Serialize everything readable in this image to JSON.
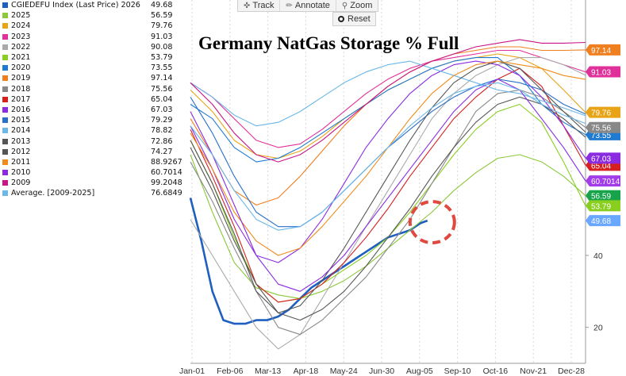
{
  "toolbar": {
    "track_label": "Track",
    "annotate_label": "Annotate",
    "zoom_label": "Zoom",
    "reset_label": "Reset"
  },
  "chart_data": {
    "type": "line",
    "title": "Germany NatGas Storage % Full",
    "x_ticks": [
      "Jan-01",
      "Feb-06",
      "Mar-13",
      "Apr-18",
      "May-24",
      "Jun-30",
      "Aug-05",
      "Sep-10",
      "Oct-16",
      "Nov-21",
      "Dec-28"
    ],
    "y_ticks": [
      20,
      40
    ],
    "ylim": [
      10,
      111
    ],
    "grid": "vertical-dashed",
    "legend_position": "top-left",
    "annotation": "red dashed circle around latest 2026 value",
    "series": [
      {
        "name": "CGIEDEFU Index (Last Price) 2026",
        "color": "#1f5fbf",
        "last": "49.68",
        "tag": "49.68",
        "tag_color": "#6aa8ff",
        "x": [
          0,
          10,
          20,
          30,
          40,
          50,
          60,
          70,
          80,
          90,
          100,
          110,
          120,
          130,
          140,
          150,
          160,
          170,
          180,
          190,
          200,
          210,
          216
        ],
        "y": [
          56,
          44,
          30,
          22,
          21,
          21,
          22,
          22,
          23,
          25,
          28,
          31,
          33,
          35,
          37,
          39,
          41,
          43,
          45,
          46,
          47,
          49,
          49.68
        ]
      },
      {
        "name": "2025",
        "color": "#8bc93a",
        "last": "56.59",
        "tag": "56.59",
        "tag_color": "#16a34a",
        "x": [
          0,
          20,
          40,
          60,
          80,
          100,
          120,
          140,
          160,
          180,
          200,
          220,
          240,
          260,
          280,
          300,
          320,
          340,
          360
        ],
        "y": [
          68,
          52,
          38,
          31,
          29,
          28,
          30,
          33,
          37,
          42,
          47,
          52,
          58,
          63,
          67,
          68,
          66,
          62,
          56.59
        ]
      },
      {
        "name": "2024",
        "color": "#e8a317",
        "last": "79.76",
        "tag": "79.76",
        "tag_color": "#e8a317",
        "x": [
          0,
          20,
          40,
          60,
          80,
          100,
          120,
          140,
          160,
          180,
          200,
          220,
          240,
          260,
          280,
          300,
          320,
          340,
          360
        ],
        "y": [
          86,
          80,
          72,
          68,
          67,
          69,
          73,
          78,
          82,
          86,
          89,
          92,
          94,
          95,
          96,
          95,
          92,
          86,
          79.76
        ]
      },
      {
        "name": "2023",
        "color": "#e0309a",
        "last": "91.03",
        "tag": "91.03",
        "tag_color": "#e0309a",
        "x": [
          0,
          20,
          40,
          60,
          80,
          100,
          120,
          140,
          160,
          180,
          200,
          220,
          240,
          260,
          280,
          300,
          320,
          340,
          360
        ],
        "y": [
          88,
          84,
          78,
          72,
          70,
          71,
          75,
          80,
          85,
          89,
          92,
          94,
          95,
          96,
          97,
          97,
          95,
          93,
          91.03
        ]
      },
      {
        "name": "2022",
        "color": "#aaaaaa",
        "last": "90.08",
        "tag": "",
        "tag_color": "#aaaaaa",
        "x": [
          0,
          20,
          40,
          60,
          80,
          100,
          120,
          140,
          160,
          180,
          200,
          220,
          240,
          260,
          280,
          300,
          320,
          340,
          360
        ],
        "y": [
          50,
          40,
          30,
          20,
          14,
          18,
          28,
          38,
          48,
          58,
          68,
          78,
          85,
          90,
          93,
          95,
          95,
          93,
          90.08
        ]
      },
      {
        "name": "2021",
        "color": "#8acf20",
        "last": "53.79",
        "tag": "53.79",
        "tag_color": "#8acf20",
        "x": [
          0,
          20,
          40,
          60,
          80,
          100,
          120,
          140,
          160,
          180,
          200,
          220,
          240,
          260,
          280,
          300,
          320,
          340,
          360
        ],
        "y": [
          72,
          60,
          45,
          32,
          27,
          28,
          32,
          36,
          40,
          45,
          52,
          60,
          68,
          75,
          80,
          82,
          77,
          66,
          53.79
        ]
      },
      {
        "name": "2020",
        "color": "#1f7ad0",
        "last": "73.55",
        "tag": "73.55",
        "tag_color": "#1f7ad0",
        "x": [
          0,
          20,
          40,
          60,
          80,
          100,
          120,
          140,
          160,
          180,
          200,
          220,
          240,
          260,
          280,
          300,
          320,
          340,
          360
        ],
        "y": [
          82,
          78,
          70,
          66,
          67,
          70,
          74,
          78,
          82,
          86,
          89,
          92,
          94,
          95,
          95,
          90,
          82,
          77,
          73.55
        ]
      },
      {
        "name": "2019",
        "color": "#f07f20",
        "last": "97.14",
        "tag": "97.14",
        "tag_color": "#f07f20",
        "x": [
          0,
          20,
          40,
          60,
          80,
          100,
          120,
          140,
          160,
          180,
          200,
          220,
          240,
          260,
          280,
          300,
          320,
          340,
          360
        ],
        "y": [
          78,
          68,
          58,
          54,
          56,
          62,
          69,
          76,
          82,
          87,
          91,
          94,
          96,
          97,
          98,
          98,
          97,
          97,
          97.14
        ]
      },
      {
        "name": "2018",
        "color": "#888888",
        "last": "75.56",
        "tag": "75.56",
        "tag_color": "#888888",
        "x": [
          0,
          20,
          40,
          60,
          80,
          100,
          120,
          140,
          160,
          180,
          200,
          220,
          240,
          260,
          280,
          300,
          320,
          340,
          360
        ],
        "y": [
          66,
          55,
          42,
          30,
          20,
          18,
          22,
          28,
          34,
          42,
          50,
          60,
          70,
          80,
          85,
          86,
          84,
          80,
          75.56
        ]
      },
      {
        "name": "2017",
        "color": "#d62020",
        "last": "65.04",
        "tag": "65.04",
        "tag_color": "#d62020",
        "x": [
          0,
          20,
          40,
          60,
          80,
          100,
          120,
          140,
          160,
          180,
          200,
          220,
          240,
          260,
          280,
          300,
          320,
          340,
          360
        ],
        "y": [
          75,
          62,
          48,
          32,
          27,
          28,
          32,
          38,
          45,
          53,
          62,
          70,
          78,
          84,
          89,
          92,
          87,
          76,
          65.04
        ]
      },
      {
        "name": "2016",
        "color": "#8a2be2",
        "last": "67.03",
        "tag": "67.03",
        "tag_color": "#8a2be2",
        "x": [
          0,
          20,
          40,
          60,
          80,
          100,
          120,
          140,
          160,
          180,
          200,
          220,
          240,
          260,
          280,
          300,
          320,
          340,
          360
        ],
        "y": [
          76,
          64,
          50,
          40,
          38,
          42,
          50,
          60,
          70,
          78,
          85,
          90,
          93,
          94,
          93,
          90,
          84,
          76,
          67.03
        ]
      },
      {
        "name": "2015",
        "color": "#2a6fc9",
        "last": "79.29",
        "tag": "",
        "tag_color": "#2a6fc9",
        "x": [
          0,
          20,
          40,
          60,
          80,
          100,
          120,
          140,
          160,
          180,
          200,
          220,
          240,
          260,
          280,
          300,
          320,
          340,
          360
        ],
        "y": [
          84,
          74,
          62,
          52,
          48,
          48,
          52,
          58,
          64,
          70,
          75,
          80,
          84,
          87,
          89,
          88,
          86,
          82,
          79.29
        ]
      },
      {
        "name": "2014",
        "color": "#6ab7e8",
        "last": "78.82",
        "tag": "",
        "tag_color": "#6ab7e8",
        "x": [
          0,
          20,
          40,
          60,
          80,
          100,
          120,
          140,
          160,
          180,
          200,
          220,
          240,
          260,
          280,
          300,
          320,
          340,
          360
        ],
        "y": [
          88,
          84,
          79,
          76,
          77,
          80,
          84,
          88,
          91,
          93,
          94,
          92,
          90,
          88,
          86,
          85,
          83,
          81,
          78.82
        ]
      },
      {
        "name": "2013",
        "color": "#555555",
        "last": "72.86",
        "tag": "",
        "tag_color": "#555555",
        "x": [
          0,
          20,
          40,
          60,
          80,
          100,
          120,
          140,
          160,
          180,
          200,
          220,
          240,
          260,
          280,
          300,
          320,
          340,
          360
        ],
        "y": [
          70,
          58,
          44,
          32,
          24,
          22,
          25,
          30,
          37,
          45,
          53,
          62,
          70,
          77,
          82,
          84,
          82,
          78,
          72.86
        ]
      },
      {
        "name": "2012",
        "color": "#555555",
        "last": "74.27",
        "tag": "",
        "tag_color": "#555555",
        "x": [
          0,
          20,
          40,
          60,
          80,
          100,
          120,
          140,
          160,
          180,
          200,
          220,
          240,
          260,
          280,
          300,
          320,
          340,
          360
        ],
        "y": [
          72,
          60,
          46,
          30,
          24,
          26,
          33,
          42,
          52,
          62,
          72,
          81,
          88,
          92,
          94,
          92,
          86,
          80,
          74.27
        ]
      },
      {
        "name": "2011",
        "color": "#f08c1a",
        "last": "88.9267",
        "tag": "",
        "tag_color": "#f08c1a",
        "x": [
          0,
          20,
          40,
          60,
          80,
          100,
          120,
          140,
          160,
          180,
          200,
          220,
          240,
          260,
          280,
          300,
          320,
          340,
          360
        ],
        "y": [
          74,
          64,
          52,
          44,
          40,
          42,
          48,
          55,
          62,
          70,
          78,
          85,
          90,
          93,
          94,
          93,
          92,
          90,
          88.93
        ]
      },
      {
        "name": "2010",
        "color": "#8a2be2",
        "last": "60.7014",
        "tag": "60.7014",
        "tag_color": "#a23be8",
        "x": [
          0,
          20,
          40,
          60,
          80,
          100,
          120,
          140,
          160,
          180,
          200,
          220,
          240,
          260,
          280,
          300,
          320,
          340,
          360
        ],
        "y": [
          80,
          68,
          54,
          40,
          32,
          30,
          34,
          40,
          48,
          56,
          64,
          72,
          80,
          86,
          89,
          86,
          78,
          70,
          60.7
        ]
      },
      {
        "name": "2009",
        "color": "#c71585",
        "last": "99.2048",
        "tag": "",
        "tag_color": "#c71585",
        "x": [
          0,
          20,
          40,
          60,
          80,
          100,
          120,
          140,
          160,
          180,
          200,
          220,
          240,
          260,
          280,
          300,
          320,
          340,
          360
        ],
        "y": [
          88,
          82,
          74,
          68,
          66,
          68,
          72,
          77,
          82,
          87,
          91,
          94,
          96,
          98,
          99,
          100,
          99,
          99,
          99.2
        ]
      },
      {
        "name": "Average. [2009-2025]",
        "color": "#6ab7e8",
        "last": "76.6849",
        "tag": "",
        "tag_color": "#6ab7e8",
        "x": [
          0,
          20,
          40,
          60,
          80,
          100,
          120,
          140,
          160,
          180,
          200,
          220,
          240,
          260,
          280,
          300,
          320,
          340,
          360
        ],
        "y": [
          76,
          68,
          58,
          50,
          47,
          48,
          52,
          58,
          64,
          70,
          76,
          81,
          85,
          87,
          88,
          86,
          82,
          79,
          76.68
        ]
      }
    ]
  }
}
